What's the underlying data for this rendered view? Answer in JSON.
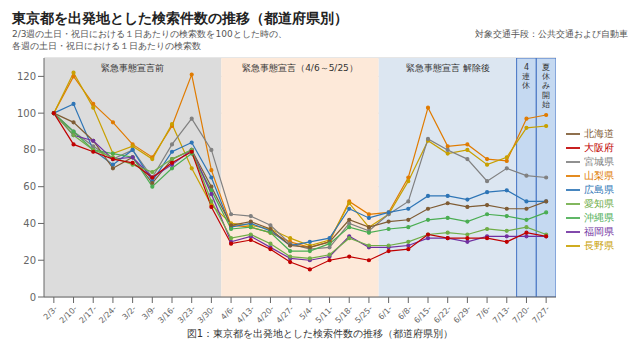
{
  "chart_data": {
    "type": "line",
    "title": "東京都を出発地とした検索件数の推移（都道府県別）",
    "subtitle": [
      "2/3週の土日・祝日における１日あたりの検索数を100とした時の、",
      "各週の土日・祝日における１日あたりの検索数",
      "対象交通手段：公共交通および自動車"
    ],
    "caption": "図1：東京都を出発地とした検索件数の推移（都道府県別）",
    "categories": [
      "2/3-",
      "2/10-",
      "2/17-",
      "2/24-",
      "3/2-",
      "3/9-",
      "3/16-",
      "3/23-",
      "3/30-",
      "4/6-",
      "4/13-",
      "4/20-",
      "4/27-",
      "5/4-",
      "5/11-",
      "5/18-",
      "5/25-",
      "6/1-",
      "6/8-",
      "6/15-",
      "6/22-",
      "6/29-",
      "7/6-",
      "7/13-",
      "7/20-",
      "7/27-"
    ],
    "series": [
      {
        "name": "山梨県",
        "color": "#e07b00",
        "values": [
          100,
          120,
          105,
          95,
          83,
          76,
          93,
          121,
          69,
          39,
          38,
          35,
          30,
          27,
          30,
          52,
          45,
          46,
          65,
          103,
          82,
          83,
          75,
          74,
          97,
          99
        ]
      },
      {
        "name": "長野県",
        "color": "#c8a000",
        "values": [
          100,
          122,
          103,
          78,
          82,
          75,
          94,
          70,
          50,
          40,
          39,
          37,
          32,
          28,
          31,
          51,
          38,
          45,
          63,
          85,
          78,
          80,
          72,
          76,
          92,
          93
        ]
      },
      {
        "name": "宮城県",
        "color": "#808080",
        "values": [
          100,
          90,
          82,
          75,
          80,
          65,
          83,
          97,
          80,
          45,
          44,
          39,
          29,
          26,
          27,
          40,
          36,
          45,
          52,
          86,
          80,
          75,
          63,
          70,
          66,
          65
        ]
      },
      {
        "name": "広島県",
        "color": "#2e75b6",
        "values": [
          100,
          105,
          80,
          72,
          80,
          63,
          79,
          84,
          65,
          38,
          40,
          36,
          28,
          30,
          32,
          48,
          43,
          46,
          48,
          55,
          55,
          53,
          57,
          58,
          52,
          52
        ]
      },
      {
        "name": "北海道",
        "color": "#7f5c34",
        "values": [
          100,
          95,
          85,
          70,
          76,
          62,
          75,
          80,
          60,
          39,
          41,
          37,
          28,
          27,
          30,
          42,
          38,
          41,
          42,
          48,
          51,
          49,
          50,
          48,
          48,
          52
        ]
      },
      {
        "name": "沖縄県",
        "color": "#4aad52",
        "values": [
          100,
          90,
          80,
          78,
          76,
          60,
          70,
          78,
          58,
          37,
          38,
          35,
          25,
          25,
          29,
          38,
          35,
          37,
          38,
          42,
          43,
          41,
          45,
          44,
          42,
          46
        ]
      },
      {
        "name": "福岡県",
        "color": "#7030a0",
        "values": [
          100,
          88,
          85,
          75,
          76,
          65,
          72,
          80,
          56,
          30,
          33,
          27,
          21,
          20,
          22,
          33,
          27,
          27,
          28,
          32,
          32,
          30,
          33,
          33,
          33,
          33
        ]
      },
      {
        "name": "愛知県",
        "color": "#70ad47",
        "values": [
          100,
          88,
          80,
          76,
          72,
          68,
          75,
          80,
          52,
          32,
          34,
          29,
          22,
          21,
          23,
          32,
          28,
          28,
          30,
          34,
          35,
          34,
          37,
          36,
          38,
          34
        ]
      },
      {
        "name": "大阪府",
        "color": "#c00000",
        "values": [
          100,
          83,
          79,
          75,
          73,
          65,
          73,
          79,
          49,
          29,
          31,
          26,
          19,
          15,
          20,
          22,
          20,
          25,
          26,
          34,
          32,
          32,
          32,
          30,
          35,
          33
        ]
      }
    ],
    "ylim": [
      0,
      130
    ],
    "yticks": [
      0,
      20,
      40,
      60,
      80,
      100,
      120
    ],
    "grid": true,
    "legend": "right",
    "marker": "circle",
    "annotations": [
      {
        "text": "緊急事態宣言前",
        "from": "2/3-",
        "to": "3/30-",
        "color": "#dcdcdc"
      },
      {
        "text": "緊急事態宣言（4/6～5/25）",
        "from": "4/6-",
        "to": "5/25-",
        "color": "#fde9d9"
      },
      {
        "text": "緊急事態宣言 解除後",
        "from": "6/1-",
        "to": "7/13-",
        "color": "#dce6f1"
      },
      {
        "text": "4\n連\n休",
        "from": "7/20-",
        "to": "7/20-",
        "color": "#c5d9f1"
      },
      {
        "text": "夏\n休\nみ\n開\n始",
        "from": "7/27-",
        "to": "7/27-",
        "color": "#c5d9f1"
      }
    ]
  }
}
